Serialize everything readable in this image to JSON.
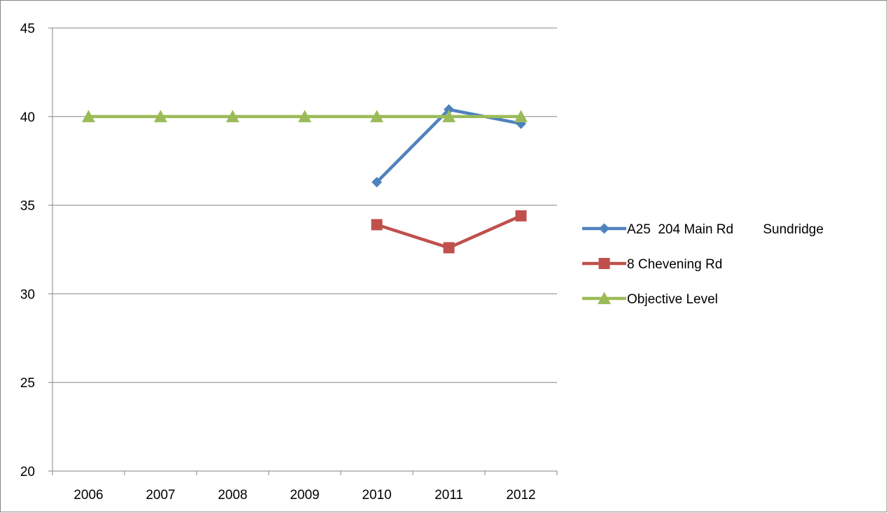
{
  "chart_data": {
    "type": "line",
    "title": "",
    "xlabel": "",
    "ylabel": "",
    "categories": [
      "2006",
      "2007",
      "2008",
      "2009",
      "2010",
      "2011",
      "2012"
    ],
    "ylim": [
      20,
      45
    ],
    "yticks": [
      20,
      25,
      30,
      35,
      40,
      45
    ],
    "grid": "horizontal major gridlines",
    "legend_position": "right",
    "series": [
      {
        "name": "A25  204 Main Rd        Sundridge",
        "values": [
          null,
          null,
          null,
          null,
          36.3,
          40.4,
          39.6
        ],
        "color": "#4f81bd",
        "marker": "diamond"
      },
      {
        "name": "8 Chevening Rd",
        "values": [
          null,
          null,
          null,
          null,
          33.9,
          32.6,
          34.4
        ],
        "color": "#c0504d",
        "marker": "square"
      },
      {
        "name": "Objective Level",
        "values": [
          40,
          40,
          40,
          40,
          40,
          40,
          40
        ],
        "color": "#9bbb59",
        "marker": "triangle"
      }
    ]
  }
}
